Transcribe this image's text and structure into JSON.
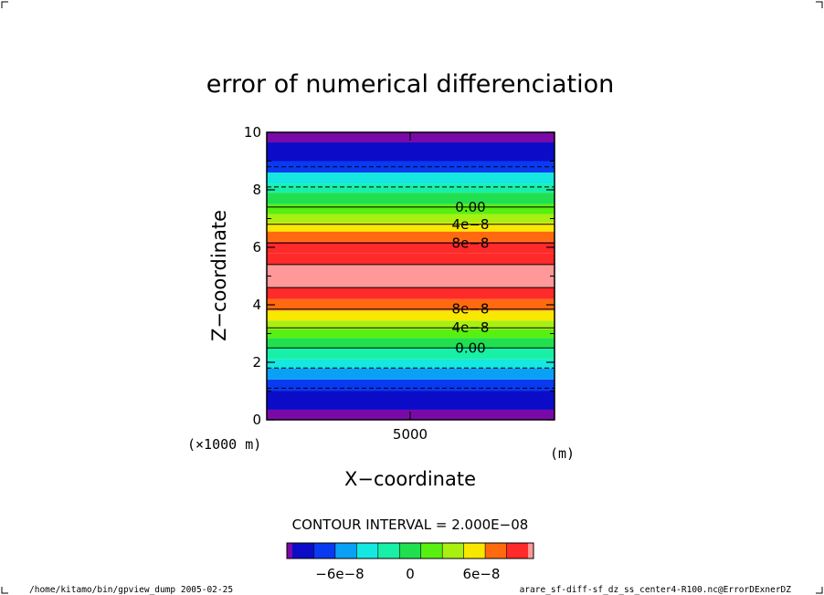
{
  "chart_data": {
    "type": "heatmap",
    "title": "error of numerical differenciation",
    "xlabel": "X−coordinate",
    "ylabel": "Z−coordinate",
    "x_axis": {
      "tick_labels": [
        "5000"
      ],
      "unit_label": "(m)",
      "scale_note": "(×1000 m)"
    },
    "y_axis": {
      "range": [
        0,
        10
      ],
      "tick_values": [
        0,
        2,
        4,
        6,
        8,
        10
      ],
      "tick_labels": [
        "0",
        "2",
        "4",
        "6",
        "8",
        "10"
      ]
    },
    "contour_interval_label": "CONTOUR INTERVAL = 2.000E−08",
    "bands": [
      {
        "z_from": 0.0,
        "z_to": 0.35,
        "color": "#7a0aa8"
      },
      {
        "z_from": 0.35,
        "z_to": 1.0,
        "color": "#0c0cc8"
      },
      {
        "z_from": 1.0,
        "z_to": 1.4,
        "color": "#0a3af0"
      },
      {
        "z_from": 1.4,
        "z_to": 1.8,
        "color": "#0aa0f5"
      },
      {
        "z_from": 1.8,
        "z_to": 2.1,
        "color": "#14e8e0"
      },
      {
        "z_from": 2.1,
        "z_to": 2.5,
        "color": "#18f0a8"
      },
      {
        "z_from": 2.5,
        "z_to": 2.85,
        "color": "#20e050"
      },
      {
        "z_from": 2.85,
        "z_to": 3.15,
        "color": "#58f010"
      },
      {
        "z_from": 3.15,
        "z_to": 3.45,
        "color": "#a8f010"
      },
      {
        "z_from": 3.45,
        "z_to": 3.8,
        "color": "#f8e800"
      },
      {
        "z_from": 3.8,
        "z_to": 4.2,
        "color": "#ff6a10"
      },
      {
        "z_from": 4.2,
        "z_to": 4.6,
        "color": "#ff2a2a"
      },
      {
        "z_from": 4.6,
        "z_to": 5.4,
        "color": "#ff9898"
      },
      {
        "z_from": 5.4,
        "z_to": 5.8,
        "color": "#ff2a2a"
      },
      {
        "z_from": 5.8,
        "z_to": 6.2,
        "color": "#ff2a2a"
      },
      {
        "z_from": 6.2,
        "z_to": 6.55,
        "color": "#ff6a10"
      },
      {
        "z_from": 6.55,
        "z_to": 6.85,
        "color": "#f8e800"
      },
      {
        "z_from": 6.85,
        "z_to": 7.15,
        "color": "#a8f010"
      },
      {
        "z_from": 7.15,
        "z_to": 7.5,
        "color": "#58f010"
      },
      {
        "z_from": 7.5,
        "z_to": 7.9,
        "color": "#20e050"
      },
      {
        "z_from": 7.9,
        "z_to": 8.2,
        "color": "#18f0a8"
      },
      {
        "z_from": 8.2,
        "z_to": 8.6,
        "color": "#14e8e0"
      },
      {
        "z_from": 8.6,
        "z_to": 9.0,
        "color": "#0a3af0"
      },
      {
        "z_from": 9.0,
        "z_to": 9.65,
        "color": "#0c0cc8"
      },
      {
        "z_from": 9.65,
        "z_to": 10.0,
        "color": "#7a0aa8"
      }
    ],
    "contours": [
      {
        "z": 1.1,
        "style": "dashed"
      },
      {
        "z": 1.8,
        "style": "dashed"
      },
      {
        "z": 2.5,
        "style": "solid",
        "label": "0.00"
      },
      {
        "z": 3.2,
        "style": "solid",
        "label": "4e−8"
      },
      {
        "z": 3.85,
        "style": "solid",
        "label": "8e−8"
      },
      {
        "z": 4.6,
        "style": "solid"
      },
      {
        "z": 5.4,
        "style": "solid"
      },
      {
        "z": 6.15,
        "style": "solid",
        "label": "8e−8"
      },
      {
        "z": 6.8,
        "style": "solid",
        "label": "4e−8"
      },
      {
        "z": 7.4,
        "style": "solid",
        "label": "0.00"
      },
      {
        "z": 8.1,
        "style": "dashed"
      },
      {
        "z": 8.8,
        "style": "dashed"
      }
    ],
    "colorbar": {
      "colors": [
        "#0c0cc8",
        "#0a3af0",
        "#0aa0f5",
        "#14e8e0",
        "#18f0a8",
        "#20e050",
        "#58f010",
        "#a8f010",
        "#f8e800",
        "#ff6a10",
        "#ff2a2a"
      ],
      "end_low_color": "#7a0aa8",
      "end_high_color": "#ff9898",
      "tick_labels": [
        "−6e−8",
        "0",
        "6e−8"
      ]
    }
  },
  "footer": {
    "left": "/home/kitamo/bin/gpview_dump  2005-02-25",
    "right": "arare_sf-diff-sf_dz_ss_center4-R100.nc@ErrorDExnerDZ"
  }
}
